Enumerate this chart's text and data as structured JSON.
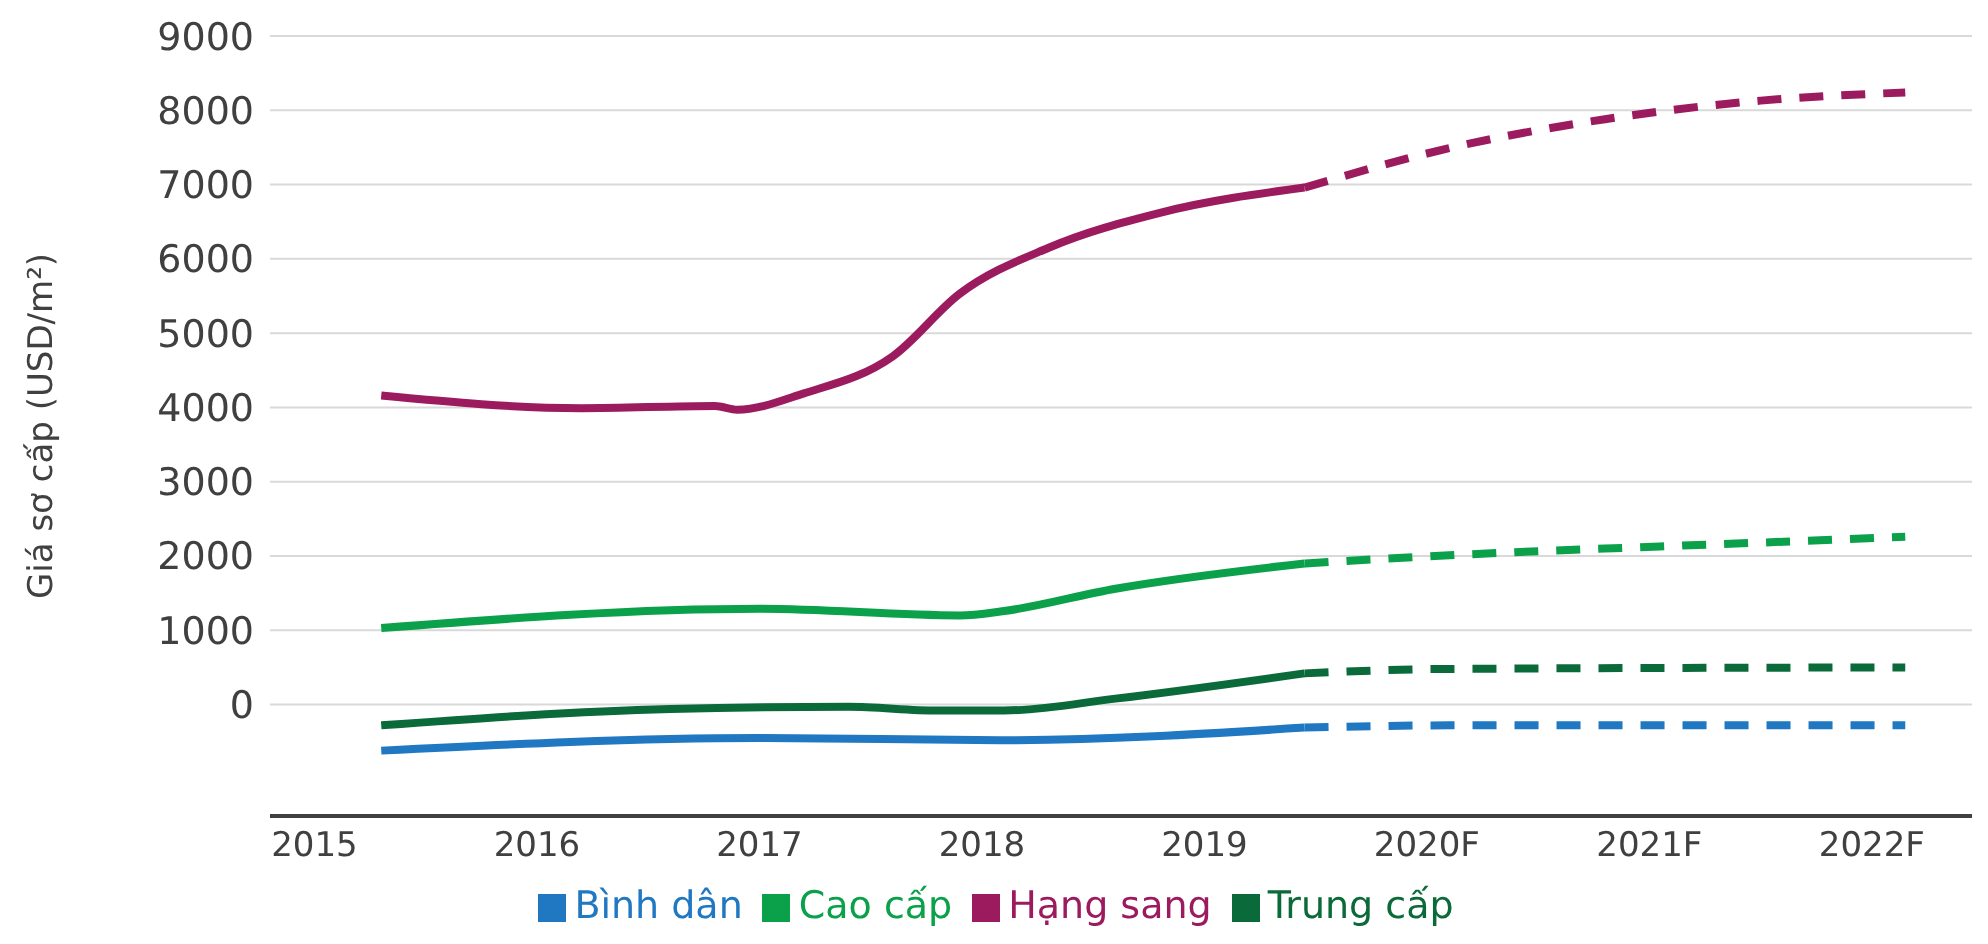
{
  "chart_data": {
    "type": "line",
    "ylabel": "Giá sơ cấp (USD/m²)",
    "xlim": [
      2014.8,
      2022.45
    ],
    "xticks": [
      {
        "value": 2015,
        "label": "2015"
      },
      {
        "value": 2016,
        "label": "2016"
      },
      {
        "value": 2017,
        "label": "2017"
      },
      {
        "value": 2018,
        "label": "2018"
      },
      {
        "value": 2019,
        "label": "2019"
      },
      {
        "value": 2020,
        "label": "2020F"
      },
      {
        "value": 2021,
        "label": "2021F"
      },
      {
        "value": 2022,
        "label": "2022F"
      }
    ],
    "ylim": [
      -1500,
      9000
    ],
    "yticks": [
      0,
      1000,
      2000,
      3000,
      4000,
      5000,
      6000,
      7000,
      8000,
      9000
    ],
    "grid": "y",
    "legend": "bottom",
    "series": [
      {
        "name": "Hạng sang",
        "color": "#9b1b5e",
        "x": [
          2015.3,
          2016.2,
          2016.8,
          2016.9,
          2017.2,
          2017.6,
          2017.9,
          2018.3,
          2018.8,
          2019.45
        ],
        "values": [
          4160,
          3990,
          4020,
          3970,
          4190,
          4690,
          5530,
          6150,
          6620,
          6960
        ]
      },
      {
        "name": "Cao cấp",
        "color": "#0aa14a",
        "x": [
          2015.3,
          2017.0,
          2017.9,
          2018.1,
          2018.6,
          2019.45
        ],
        "values": [
          1030,
          1290,
          1200,
          1260,
          1560,
          1900
        ]
      },
      {
        "name": "Trung cấp",
        "color": "#0b6a3a",
        "x": [
          2015.3,
          2016.6,
          2017.4,
          2017.8,
          2018.1,
          2018.6,
          2019.45
        ],
        "values": [
          -280,
          -60,
          -30,
          -80,
          -80,
          80,
          420
        ]
      },
      {
        "name": "Bình dân",
        "color": "#1f78c1",
        "x": [
          2015.3,
          2017.0,
          2018.1,
          2019.45
        ],
        "values": [
          -620,
          -450,
          -480,
          -310
        ]
      },
      {
        "color": "#9b1b5e",
        "line_style": "dashed",
        "x": [
          2019.45,
          2020.1,
          2020.8,
          2021.5,
          2022.15
        ],
        "values": [
          6960,
          7490,
          7880,
          8130,
          8240
        ]
      },
      {
        "color": "#0aa14a",
        "line_style": "dashed",
        "x": [
          2019.45,
          2020.1,
          2020.8,
          2021.5,
          2022.15
        ],
        "values": [
          1900,
          2010,
          2100,
          2180,
          2260
        ]
      },
      {
        "color": "#0b6a3a",
        "line_style": "dashed",
        "x": [
          2019.45,
          2020.1,
          2022.15
        ],
        "values": [
          420,
          480,
          500
        ]
      },
      {
        "color": "#1f78c1",
        "line_style": "dashed",
        "x": [
          2019.45,
          2020.1,
          2022.15
        ],
        "values": [
          -310,
          -280,
          -280
        ]
      }
    ]
  }
}
